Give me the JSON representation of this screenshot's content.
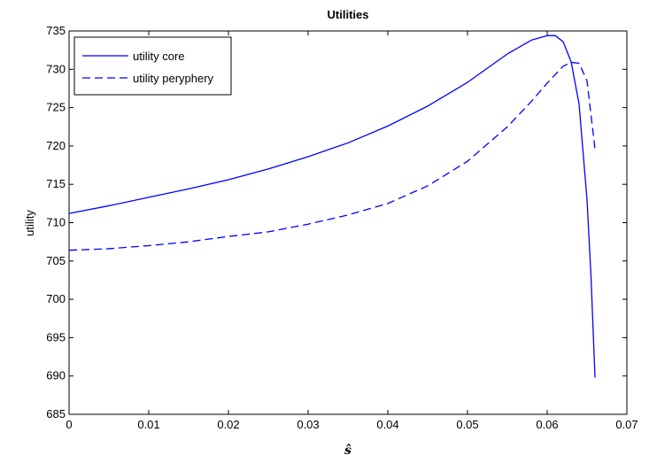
{
  "chart_data": {
    "type": "line",
    "title": "Utilities",
    "xlabel": "ŝ",
    "ylabel": "utility",
    "xlim": [
      0,
      0.07
    ],
    "ylim": [
      685,
      735
    ],
    "xticks": [
      0,
      0.01,
      0.02,
      0.03,
      0.04,
      0.05,
      0.06,
      0.07
    ],
    "xtick_labels": [
      "0",
      "0.01",
      "0.02",
      "0.03",
      "0.04",
      "0.05",
      "0.06",
      "0.07"
    ],
    "yticks": [
      685,
      690,
      695,
      700,
      705,
      710,
      715,
      720,
      725,
      730,
      735
    ],
    "ytick_labels": [
      "685",
      "690",
      "695",
      "700",
      "705",
      "710",
      "715",
      "720",
      "725",
      "730",
      "735"
    ],
    "grid": false,
    "legend_position": "top-left",
    "series": [
      {
        "name": "utility core",
        "style": "solid",
        "color": "#0000ff",
        "x": [
          0,
          0.005,
          0.01,
          0.015,
          0.02,
          0.025,
          0.03,
          0.035,
          0.04,
          0.045,
          0.05,
          0.055,
          0.058,
          0.06,
          0.061,
          0.062,
          0.063,
          0.064,
          0.065,
          0.0655,
          0.066
        ],
        "y": [
          711.2,
          712.2,
          713.3,
          714.4,
          715.6,
          717.0,
          718.6,
          720.4,
          722.6,
          725.2,
          728.3,
          732.0,
          733.8,
          734.4,
          734.4,
          733.6,
          731.0,
          725.5,
          713.0,
          703.0,
          689.8
        ]
      },
      {
        "name": "utility peryphery",
        "style": "dashed",
        "color": "#0000ff",
        "x": [
          0,
          0.005,
          0.01,
          0.015,
          0.02,
          0.025,
          0.03,
          0.035,
          0.04,
          0.045,
          0.05,
          0.055,
          0.058,
          0.06,
          0.062,
          0.063,
          0.064,
          0.065,
          0.066
        ],
        "y": [
          706.4,
          706.6,
          707.0,
          707.5,
          708.2,
          708.8,
          709.8,
          711.0,
          712.5,
          714.8,
          718.0,
          722.5,
          725.8,
          728.2,
          730.4,
          730.9,
          730.8,
          728.5,
          719.6
        ]
      }
    ]
  }
}
